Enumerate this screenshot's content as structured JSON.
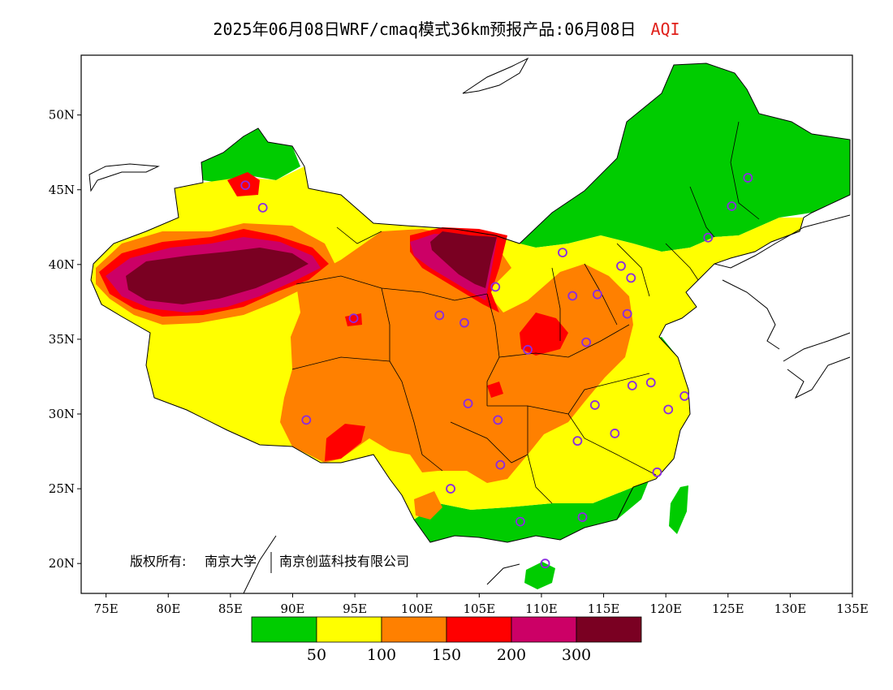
{
  "title": {
    "main": "2025年06月08日WRF/cmaq模式36km预报产品:06月08日",
    "variable": "AQI"
  },
  "axes": {
    "lon_ticks": [
      "75E",
      "80E",
      "85E",
      "90E",
      "95E",
      "100E",
      "105E",
      "110E",
      "115E",
      "120E",
      "125E",
      "130E",
      "135E"
    ],
    "lat_ticks": [
      "50N",
      "45N",
      "40N",
      "35N",
      "30N",
      "25N",
      "20N"
    ],
    "lon_range": [
      73,
      135
    ],
    "lat_range": [
      18,
      54
    ]
  },
  "copyright": {
    "prefix": "版权所有:",
    "org1": "南京大学",
    "org2": "南京创蓝科技有限公司"
  },
  "legend": {
    "colors": [
      "#00cc00",
      "#ffff00",
      "#ff8000",
      "#ff0000",
      "#cc0066",
      "#7a0022"
    ],
    "labels": [
      "50",
      "100",
      "150",
      "200",
      "300"
    ]
  },
  "colors": {
    "good": "#00cc00",
    "moderate": "#ffff00",
    "sensitive": "#ff8000",
    "unhealthy": "#ff0000",
    "very_unhealthy": "#cc0066",
    "hazardous": "#7a0022",
    "station_marker": "#8a2be2"
  },
  "stations_lonlat": [
    [
      87.6,
      43.8
    ],
    [
      91.1,
      29.6
    ],
    [
      101.8,
      36.6
    ],
    [
      103.8,
      36.1
    ],
    [
      106.3,
      38.5
    ],
    [
      111.7,
      40.8
    ],
    [
      112.5,
      37.9
    ],
    [
      114.5,
      38.0
    ],
    [
      116.4,
      39.9
    ],
    [
      117.2,
      39.1
    ],
    [
      116.9,
      36.7
    ],
    [
      113.6,
      34.8
    ],
    [
      108.9,
      34.3
    ],
    [
      104.1,
      30.7
    ],
    [
      106.5,
      29.6
    ],
    [
      106.7,
      26.6
    ],
    [
      102.7,
      25.0
    ],
    [
      108.3,
      22.8
    ],
    [
      113.3,
      23.1
    ],
    [
      110.3,
      20.0
    ],
    [
      114.3,
      30.6
    ],
    [
      112.9,
      28.2
    ],
    [
      115.9,
      28.7
    ],
    [
      117.3,
      31.9
    ],
    [
      118.8,
      32.1
    ],
    [
      120.2,
      30.3
    ],
    [
      121.5,
      31.2
    ],
    [
      119.3,
      26.1
    ],
    [
      123.4,
      41.8
    ],
    [
      125.3,
      43.9
    ],
    [
      126.6,
      45.8
    ],
    [
      94.9,
      36.4
    ],
    [
      86.2,
      45.3
    ]
  ]
}
